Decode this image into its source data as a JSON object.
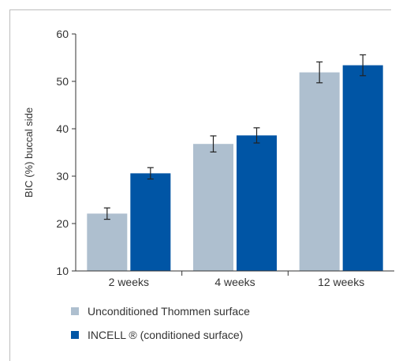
{
  "chart_data": {
    "type": "bar",
    "ylabel": "BIC (%) buccal side",
    "xlabel": "",
    "ylim": [
      10,
      60
    ],
    "yticks": [
      10,
      20,
      30,
      40,
      50,
      60
    ],
    "grid": "none",
    "legend_placement": "bottom-left",
    "categories": [
      "2 weeks",
      "4 weeks",
      "12 weeks"
    ],
    "series": [
      {
        "name": "Unconditioned Thommen surface",
        "color": "#aebfcf",
        "values": [
          22.1,
          36.8,
          51.9
        ],
        "error": [
          1.2,
          1.7,
          2.2
        ]
      },
      {
        "name": "INCELL ® (conditioned surface)",
        "color": "#0055a5",
        "values": [
          30.6,
          38.6,
          53.4
        ],
        "error": [
          1.2,
          1.6,
          2.2
        ]
      }
    ]
  }
}
